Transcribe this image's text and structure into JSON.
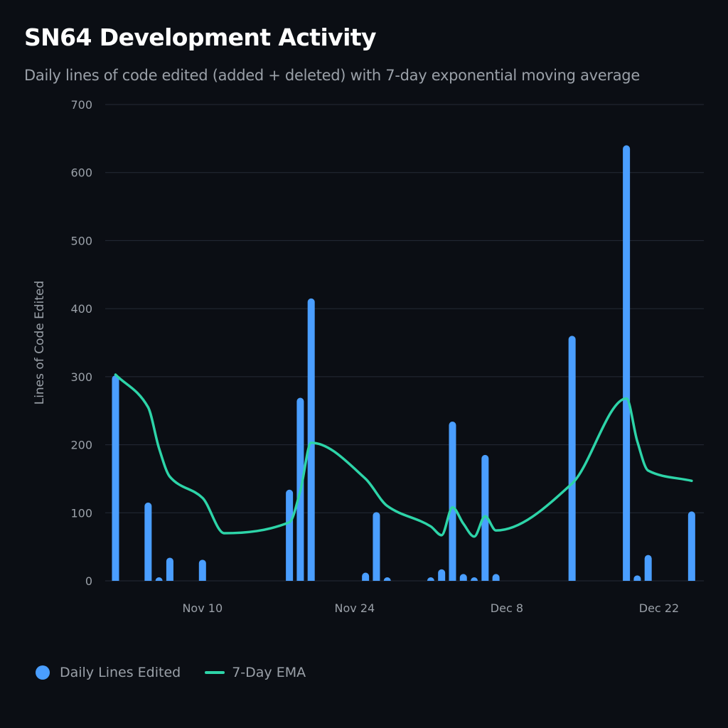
{
  "header": {
    "title": "SN64 Development Activity",
    "subtitle": "Daily lines of code edited (added + deleted) with 7-day exponential moving average"
  },
  "colors": {
    "background": "#0b0e14",
    "bars": "#4a9eff",
    "ema": "#2dd4a8",
    "grid": "#252b36",
    "text": "#9aa0a8"
  },
  "chart_data": {
    "type": "bar",
    "title": "SN64 Development Activity",
    "subtitle": "Daily lines of code edited (added + deleted) with 7-day exponential moving average",
    "xlabel": "",
    "ylabel": "Lines of Code Edited",
    "ylim": [
      0,
      700
    ],
    "yticks": [
      0,
      100,
      200,
      300,
      400,
      500,
      600,
      700
    ],
    "grid": true,
    "x_range_days": [
      "Oct 31",
      "Dec 27"
    ],
    "xticks": [
      {
        "label": "Nov 10",
        "day": 10
      },
      {
        "label": "Nov 24",
        "day": 24
      },
      {
        "label": "Dec 8",
        "day": 38
      },
      {
        "label": "Dec 22",
        "day": 52
      }
    ],
    "day_origin": "Oct 31",
    "legend_position": "bottom-left",
    "series": [
      {
        "name": "Daily Lines Edited",
        "type": "bar",
        "points": [
          {
            "date": "Nov 2",
            "day": 2,
            "value": 302
          },
          {
            "date": "Nov 5",
            "day": 5,
            "value": 115
          },
          {
            "date": "Nov 6",
            "day": 6,
            "value": 4
          },
          {
            "date": "Nov 7",
            "day": 7,
            "value": 34
          },
          {
            "date": "Nov 10",
            "day": 10,
            "value": 31
          },
          {
            "date": "Nov 18",
            "day": 18,
            "value": 134
          },
          {
            "date": "Nov 19",
            "day": 19,
            "value": 269
          },
          {
            "date": "Nov 20",
            "day": 20,
            "value": 415
          },
          {
            "date": "Nov 25",
            "day": 25,
            "value": 12
          },
          {
            "date": "Nov 26",
            "day": 26,
            "value": 101
          },
          {
            "date": "Nov 27",
            "day": 27,
            "value": 3
          },
          {
            "date": "Dec 1",
            "day": 31,
            "value": 3
          },
          {
            "date": "Dec 2",
            "day": 32,
            "value": 17
          },
          {
            "date": "Dec 3",
            "day": 33,
            "value": 234
          },
          {
            "date": "Dec 4",
            "day": 34,
            "value": 10
          },
          {
            "date": "Dec 5",
            "day": 35,
            "value": 5
          },
          {
            "date": "Dec 6",
            "day": 36,
            "value": 185
          },
          {
            "date": "Dec 7",
            "day": 37,
            "value": 10
          },
          {
            "date": "Dec 14",
            "day": 44,
            "value": 360
          },
          {
            "date": "Dec 19",
            "day": 49,
            "value": 640
          },
          {
            "date": "Dec 20",
            "day": 50,
            "value": 8
          },
          {
            "date": "Dec 21",
            "day": 51,
            "value": 38
          },
          {
            "date": "Dec 25",
            "day": 55,
            "value": 102
          }
        ]
      },
      {
        "name": "7-Day EMA",
        "type": "line",
        "points": [
          {
            "date": "Nov 2",
            "day": 2,
            "value": 303
          },
          {
            "date": "Nov 5",
            "day": 5,
            "value": 255
          },
          {
            "date": "Nov 6",
            "day": 6,
            "value": 195
          },
          {
            "date": "Nov 7",
            "day": 7,
            "value": 153
          },
          {
            "date": "Nov 10",
            "day": 10,
            "value": 122
          },
          {
            "date": "Nov 12",
            "day": 12,
            "value": 70
          },
          {
            "date": "Nov 18",
            "day": 18,
            "value": 86
          },
          {
            "date": "Nov 19",
            "day": 19,
            "value": 132
          },
          {
            "date": "Nov 20",
            "day": 20,
            "value": 203
          },
          {
            "date": "Nov 25",
            "day": 25,
            "value": 150
          },
          {
            "date": "Nov 27",
            "day": 27,
            "value": 110
          },
          {
            "date": "Dec 1",
            "day": 31,
            "value": 80
          },
          {
            "date": "Dec 2",
            "day": 32,
            "value": 67
          },
          {
            "date": "Dec 3",
            "day": 33,
            "value": 108
          },
          {
            "date": "Dec 4",
            "day": 34,
            "value": 84
          },
          {
            "date": "Dec 5",
            "day": 35,
            "value": 65
          },
          {
            "date": "Dec 6",
            "day": 36,
            "value": 95
          },
          {
            "date": "Dec 7",
            "day": 37,
            "value": 74
          },
          {
            "date": "Dec 14",
            "day": 44,
            "value": 143
          },
          {
            "date": "Dec 19",
            "day": 49,
            "value": 268
          },
          {
            "date": "Dec 20",
            "day": 50,
            "value": 205
          },
          {
            "date": "Dec 21",
            "day": 51,
            "value": 162
          },
          {
            "date": "Dec 25",
            "day": 55,
            "value": 147
          }
        ]
      }
    ]
  },
  "legend": {
    "items": [
      {
        "label": "Daily Lines Edited",
        "icon": "circle-marker"
      },
      {
        "label": "7-Day EMA",
        "icon": "line-marker"
      }
    ]
  }
}
